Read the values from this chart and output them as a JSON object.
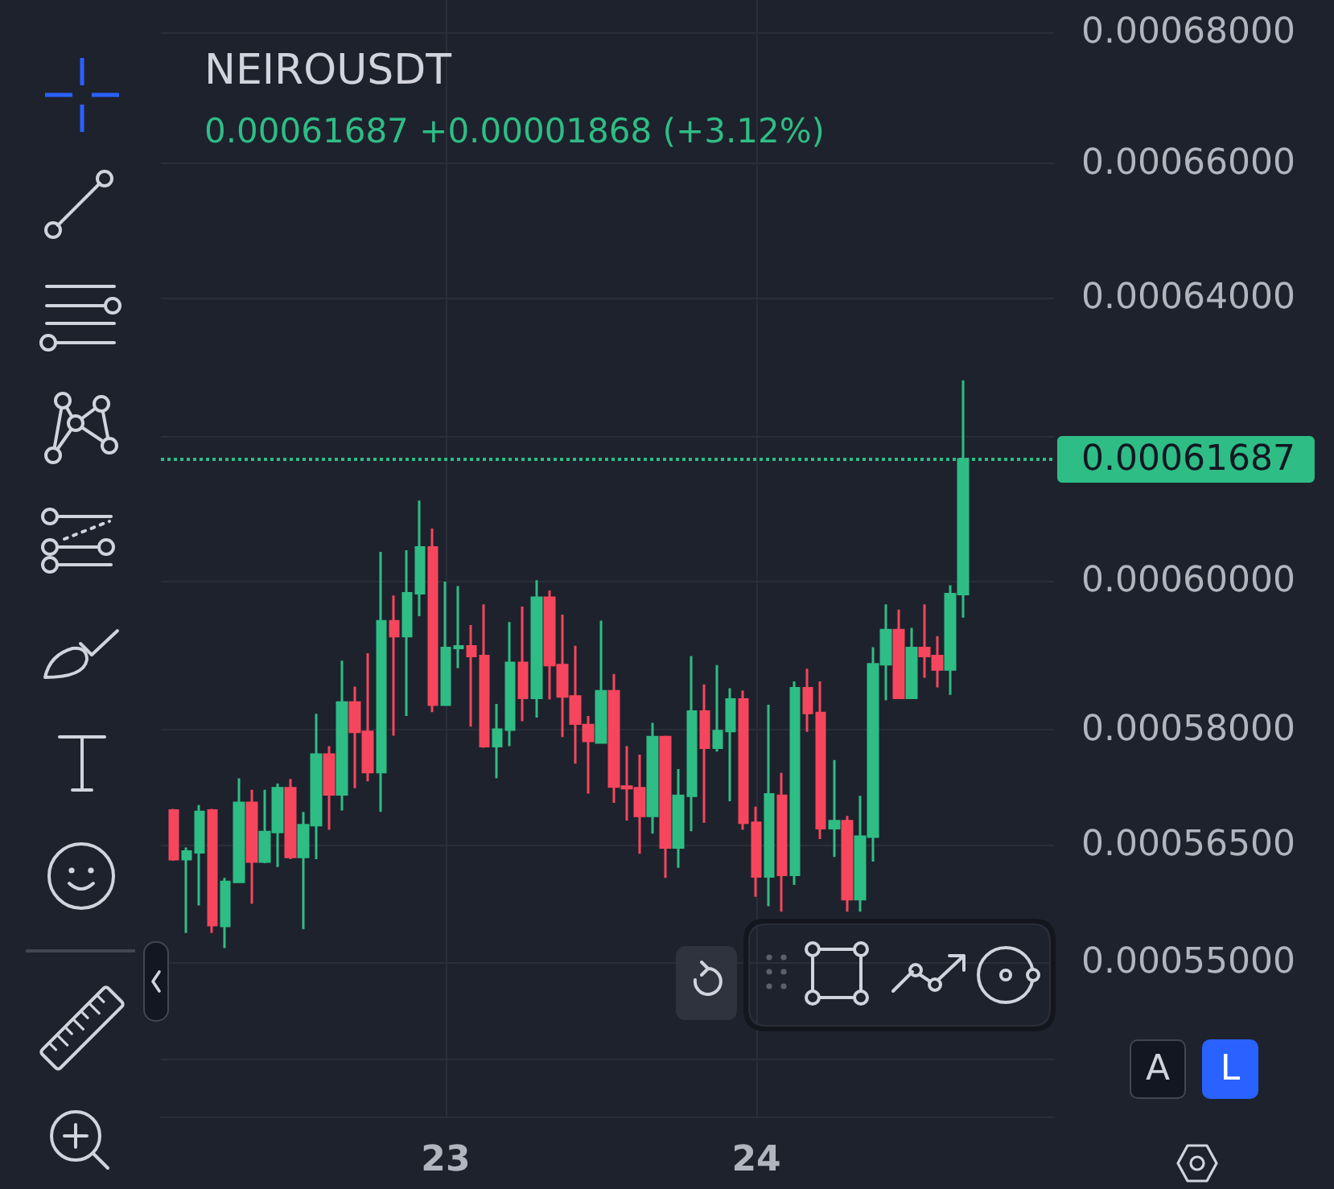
{
  "chart_data": {
    "type": "candlestick",
    "title": "NEIROUSDT",
    "subtitle": "0.00061687 +0.00001868 (+3.12%)",
    "x": [
      22.125,
      22.1667,
      22.2083,
      22.25,
      22.2917,
      22.3333,
      22.375,
      22.4167,
      22.4583,
      22.5,
      22.5417,
      22.5833,
      22.625,
      22.6667,
      22.7083,
      22.75,
      22.7917,
      22.8333,
      22.875,
      22.9167,
      22.9583,
      23,
      23.0417,
      23.0833,
      23.125,
      23.1667,
      23.2083,
      23.25,
      23.2917,
      23.3333,
      23.375,
      23.4167,
      23.4583,
      23.5,
      23.5417,
      23.5833,
      23.625,
      23.6667,
      23.7083,
      23.75,
      23.7917,
      23.8333,
      23.875,
      23.9167,
      23.9583,
      24,
      24.0417,
      24.0833,
      24.125,
      24.1667,
      24.2083,
      24.25,
      24.2917,
      24.3333,
      24.375,
      24.4167,
      24.4583,
      24.5,
      24.5417,
      24.5833,
      24.625,
      24.6667
    ],
    "ohlc": [
      [
        0.0005694,
        0.0005696,
        0.0005629,
        0.0005631
      ],
      [
        0.0005631,
        0.0005646,
        0.0005537,
        0.0005641
      ],
      [
        0.000564,
        0.0005701,
        0.0005572,
        0.0005692
      ],
      [
        0.0005694,
        0.0005696,
        0.0005537,
        0.0005547
      ],
      [
        0.0005546,
        0.0005607,
        0.0005518,
        0.0005602
      ],
      [
        0.0005602,
        0.0005736,
        0.0005601,
        0.0005704
      ],
      [
        0.0005704,
        0.0005721,
        0.0005574,
        0.0005628
      ],
      [
        0.0005628,
        0.0005721,
        0.0005626,
        0.0005666
      ],
      [
        0.0005666,
        0.0005729,
        0.0005621,
        0.0005723
      ],
      [
        0.0005723,
        0.0005735,
        0.0005631,
        0.0005634
      ],
      [
        0.0005634,
        0.0005692,
        0.0005542,
        0.0005675
      ],
      [
        0.0005675,
        0.0005821,
        0.0005631,
        0.0005767
      ],
      [
        0.0005767,
        0.0005778,
        0.0005669,
        0.0005715
      ],
      [
        0.0005715,
        0.0005892,
        0.0005694,
        0.0005836
      ],
      [
        0.0005836,
        0.0005857,
        0.0005723,
        0.0005797
      ],
      [
        0.0005797,
        0.0005902,
        0.0005732,
        0.0005744
      ],
      [
        0.0005744,
        0.000604,
        0.0005692,
        0.0005945
      ],
      [
        0.0005945,
        0.000598,
        0.0005792,
        0.0005925
      ],
      [
        0.0005925,
        0.0006042,
        0.0005818,
        0.0005983
      ],
      [
        0.0005983,
        0.0006111,
        0.0005952,
        0.0006046
      ],
      [
        0.0006046,
        0.0006072,
        0.0005823,
        0.0005833
      ],
      [
        0.0005833,
        0.0005999,
        0.0005832,
        0.0005909
      ],
      [
        0.0005909,
        0.0005993,
        0.0005882,
        0.0005911
      ],
      [
        0.0005911,
        0.000594,
        0.0005804,
        0.0005898
      ],
      [
        0.0005898,
        0.0005968,
        0.0005776,
        0.0005778
      ],
      [
        0.0005778,
        0.0005834,
        0.0005736,
        0.00058
      ],
      [
        0.00058,
        0.0005944,
        0.0005778,
        0.0005889
      ],
      [
        0.0005889,
        0.0005965,
        0.0005811,
        0.0005842
      ],
      [
        0.0005842,
        0.0006001,
        0.0005816,
        0.0005977
      ],
      [
        0.0005977,
        0.0005987,
        0.000584,
        0.0005886
      ],
      [
        0.0005886,
        0.0005954,
        0.000579,
        0.0005844
      ],
      [
        0.0005844,
        0.0005912,
        0.0005755,
        0.0005808
      ],
      [
        0.0005806,
        0.0005818,
        0.0005716,
        0.0005785
      ],
      [
        0.0005783,
        0.0005946,
        0.0005782,
        0.0005851
      ],
      [
        0.0005851,
        0.0005874,
        0.0005704,
        0.0005725
      ],
      [
        0.0005725,
        0.0005778,
        0.0005681,
        0.0005723
      ],
      [
        0.0005723,
        0.0005767,
        0.0005638,
        0.0005687
      ],
      [
        0.0005687,
        0.0005809,
        0.0005664,
        0.000579
      ],
      [
        0.000579,
        0.0005792,
        0.0005607,
        0.0005646
      ],
      [
        0.0005646,
        0.0005748,
        0.000562,
        0.0005713
      ],
      [
        0.0005713,
        0.0005898,
        0.0005667,
        0.0005824
      ],
      [
        0.0005824,
        0.000586,
        0.0005678,
        0.0005776
      ],
      [
        0.0005776,
        0.0005886,
        0.0005771,
        0.0005798
      ],
      [
        0.0005798,
        0.0005855,
        0.0005706,
        0.000584
      ],
      [
        0.000584,
        0.0005852,
        0.0005669,
        0.0005678
      ],
      [
        0.0005678,
        0.0005699,
        0.0005583,
        0.0005609
      ],
      [
        0.0005609,
        0.0005833,
        0.0005571,
        0.0005715
      ],
      [
        0.0005713,
        0.0005743,
        0.0005564,
        0.0005611
      ],
      [
        0.0005611,
        0.0005864,
        0.0005598,
        0.0005855
      ],
      [
        0.0005855,
        0.0005881,
        0.0005797,
        0.0005822
      ],
      [
        0.0005822,
        0.0005864,
        0.0005657,
        0.0005671
      ],
      [
        0.0005671,
        0.000576,
        0.0005634,
        0.000568
      ],
      [
        0.000568,
        0.0005687,
        0.0005564,
        0.000558
      ],
      [
        0.000558,
        0.0005713,
        0.0005564,
        0.000566
      ],
      [
        0.000566,
        0.000591,
        0.0005628,
        0.0005887
      ],
      [
        0.0005887,
        0.0005968,
        0.0005839,
        0.0005933
      ],
      [
        0.0005933,
        0.0005961,
        0.0005841,
        0.0005842
      ],
      [
        0.0005842,
        0.0005936,
        0.0005841,
        0.0005909
      ],
      [
        0.0005909,
        0.0005968,
        0.0005869,
        0.0005898
      ],
      [
        0.0005898,
        0.0005925,
        0.0005856,
        0.000588
      ],
      [
        0.000588,
        0.0005994,
        0.0005846,
        0.0005982
      ],
      [
        0.0005982,
        0.0006281,
        0.000595,
        0.00061687
      ]
    ],
    "colors": [
      "#f6465d",
      "#2ebd85",
      "#2ebd85",
      "#f6465d",
      "#2ebd85",
      "#2ebd85",
      "#f6465d",
      "#2ebd85",
      "#2ebd85",
      "#f6465d",
      "#2ebd85",
      "#2ebd85",
      "#f6465d",
      "#2ebd85",
      "#f6465d",
      "#f6465d",
      "#2ebd85",
      "#f6465d",
      "#2ebd85",
      "#2ebd85",
      "#f6465d",
      "#2ebd85",
      "#2ebd85",
      "#f6465d",
      "#f6465d",
      "#2ebd85",
      "#2ebd85",
      "#f6465d",
      "#2ebd85",
      "#f6465d",
      "#f6465d",
      "#f6465d",
      "#f6465d",
      "#2ebd85",
      "#f6465d",
      "#f6465d",
      "#f6465d",
      "#2ebd85",
      "#f6465d",
      "#2ebd85",
      "#2ebd85",
      "#f6465d",
      "#2ebd85",
      "#2ebd85",
      "#f6465d",
      "#f6465d",
      "#2ebd85",
      "#f6465d",
      "#2ebd85",
      "#f6465d",
      "#f6465d",
      "#2ebd85",
      "#f6465d",
      "#2ebd85",
      "#2ebd85",
      "#2ebd85",
      "#f6465d",
      "#2ebd85",
      "#f6465d",
      "#f6465d",
      "#2ebd85",
      "#2ebd85"
    ],
    "xlim": [
      22.0833,
      24.9583
    ],
    "xticks": [
      23,
      24
    ],
    "ylim": [
      0.000531,
      0.000685
    ],
    "yticks": [
      {
        "value": 0.00068,
        "label": "0.00068000"
      },
      {
        "value": 0.00066,
        "label": "0.00066000"
      },
      {
        "value": 0.00064,
        "label": "0.00064000"
      },
      {
        "value": 0.00062,
        "label": null
      },
      {
        "value": 0.0006,
        "label": "0.00060000"
      },
      {
        "value": 0.00058,
        "label": "0.00058000"
      },
      {
        "value": 0.000565,
        "label": "0.00056500"
      },
      {
        "value": 0.00055,
        "label": "0.00055000"
      },
      {
        "value": 0.000538,
        "label": null
      }
    ],
    "log": true,
    "grid": true,
    "ref_lines": [
      {
        "axis": "y",
        "value": 0.00061687,
        "label": "0.00061687",
        "color": "#2ebd85",
        "line_style": "dotted"
      }
    ],
    "annotations": [
      "A",
      "L"
    ]
  }
}
